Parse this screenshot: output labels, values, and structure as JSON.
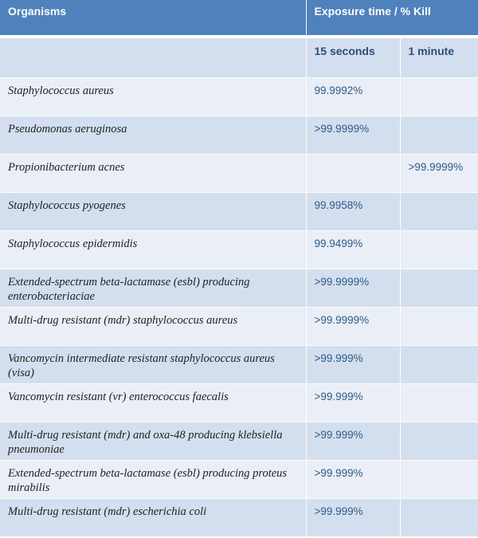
{
  "header": {
    "organisms": "Organisms",
    "exposure": "Exposure time / % Kill"
  },
  "subheader": {
    "col1": "",
    "col2": "15 seconds",
    "col3": "1 minute"
  },
  "rows": [
    {
      "organism": "Staphylococcus aureus",
      "sec15": "99.9992%",
      "min1": ""
    },
    {
      "organism": "Pseudomonas aeruginosa",
      "sec15": ">99.9999%",
      "min1": ""
    },
    {
      "organism": "Propionibacterium acnes",
      "sec15": "",
      "min1": ">99.9999%"
    },
    {
      "organism": "Staphylococcus pyogenes",
      "sec15": "99.9958%",
      "min1": ""
    },
    {
      "organism": "Staphylococcus epidermidis",
      "sec15": "99.9499%",
      "min1": ""
    },
    {
      "organism": "Extended-spectrum beta-lactamase (esbl) producing enterobacteriaciae",
      "sec15": ">99.9999%",
      "min1": ""
    },
    {
      "organism": "Multi-drug resistant (mdr) staphylococcus aureus",
      "sec15": ">99.9999%",
      "min1": ""
    },
    {
      "organism": "Vancomycin intermediate resistant staphylococcus aureus (visa)",
      "sec15": ">99.999%",
      "min1": ""
    },
    {
      "organism": "Vancomycin resistant (vr) enterococcus faecalis",
      "sec15": ">99.999%",
      "min1": ""
    },
    {
      "organism": "Multi-drug resistant (mdr) and oxa-48 producing klebsiella pneumoniae",
      "sec15": ">99.999%",
      "min1": ""
    },
    {
      "organism": "Extended-spectrum beta-lactamase (esbl) producing proteus mirabilis",
      "sec15": ">99.999%",
      "min1": ""
    },
    {
      "organism": "Multi-drug resistant (mdr) escherichia coli",
      "sec15": ">99.999%",
      "min1": ""
    }
  ],
  "colors": {
    "header_bg": "#4f81bd",
    "row_light": "#e9eef7",
    "row_dark": "#d3dfee",
    "value_text": "#2e5a8a"
  }
}
